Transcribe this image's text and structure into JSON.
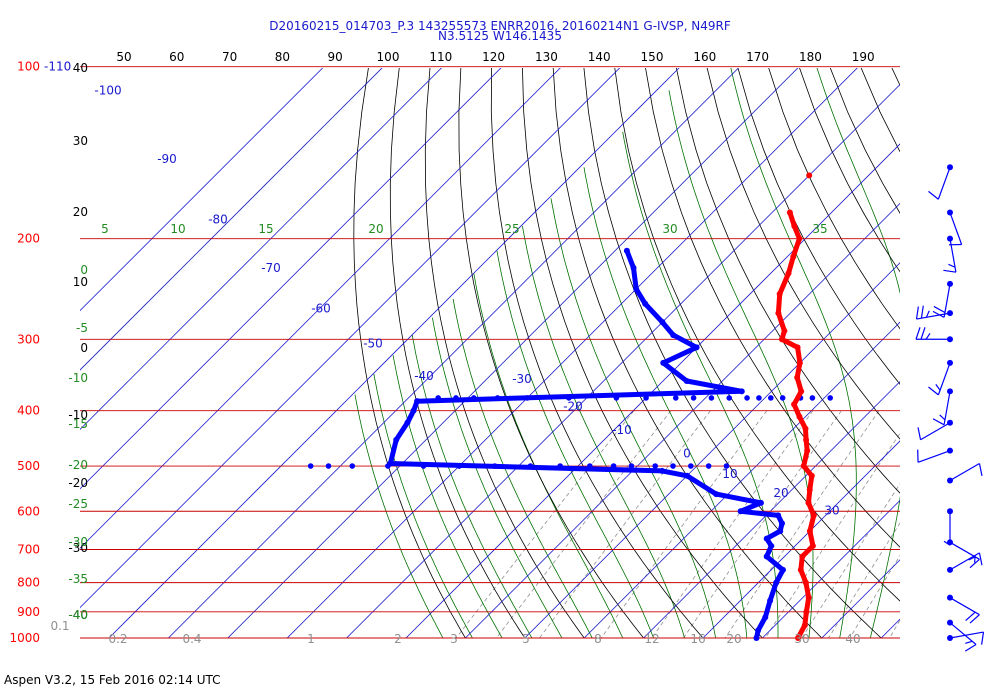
{
  "header": {
    "line1": "D20160215_014703_P.3 143255573 ENRR2016, 20160214N1 G-IVSP, N49RF",
    "line2": "N3.5125 W146.1435"
  },
  "footer": {
    "text": "Aspen V3.2, 15 Feb 2016  02:14 UTC"
  },
  "colors": {
    "temperature": "#ff0000",
    "dewpoint": "#0000ff",
    "isobar": "#cc0000",
    "isotherm": "#1a1acd",
    "dry_adiabat": "#000000",
    "moist_adiabat": "#007000",
    "mixing_ratio": "#909090",
    "wind": "#0000ff"
  },
  "chart_data": {
    "type": "scatter",
    "title": "",
    "xlabel": "",
    "ylabel": "",
    "y_scale": "log-pressure",
    "pressure_levels": [
      100,
      200,
      300,
      400,
      500,
      600,
      700,
      800,
      900,
      1000
    ],
    "pressure_labels": [
      "100",
      "200",
      "300",
      "400",
      "500",
      "600",
      "700",
      "800",
      "900",
      "1000"
    ],
    "pressure_extra_label": "-110",
    "top_temperature_ticks": [
      "50",
      "60",
      "70",
      "80",
      "90",
      "100",
      "110",
      "120",
      "130",
      "140",
      "150",
      "160",
      "170",
      "180",
      "190"
    ],
    "isotherm_labels": [
      "-100",
      "-90",
      "-80",
      "-70",
      "-60",
      "-50",
      "-40",
      "-30",
      "-20",
      "-10",
      "0",
      "10",
      "20",
      "30"
    ],
    "dry_adiabat_labels": [
      "40",
      "30",
      "20",
      "10",
      "0",
      "-10",
      "-20",
      "-30",
      "-40"
    ],
    "moist_adiabat_left_labels": [
      "5",
      "0",
      "-5",
      "-10",
      "-15",
      "-20",
      "-25",
      "-30",
      "-35",
      "-40"
    ],
    "moist_adiabat_top_labels": [
      "5",
      "10",
      "15",
      "20",
      "25",
      "30",
      "35"
    ],
    "mixing_ratio_labels": [
      "0.1",
      "0.2",
      "0.4",
      "1",
      "2",
      "3",
      "5",
      "8",
      "12",
      "16",
      "20",
      "30",
      "40"
    ],
    "temperature_profile": {
      "name": "Temperature",
      "points": [
        [
          180,
          -57
        ],
        [
          190,
          -54
        ],
        [
          200,
          -51
        ],
        [
          215,
          -49
        ],
        [
          230,
          -47
        ],
        [
          250,
          -45
        ],
        [
          270,
          -42
        ],
        [
          290,
          -38
        ],
        [
          300,
          -37
        ],
        [
          310,
          -33
        ],
        [
          330,
          -30
        ],
        [
          350,
          -28
        ],
        [
          370,
          -25
        ],
        [
          390,
          -24
        ],
        [
          410,
          -21
        ],
        [
          430,
          -18
        ],
        [
          450,
          -16
        ],
        [
          470,
          -14
        ],
        [
          500,
          -12
        ],
        [
          520,
          -9
        ],
        [
          550,
          -7
        ],
        [
          580,
          -5
        ],
        [
          610,
          -2
        ],
        [
          650,
          0
        ],
        [
          690,
          3
        ],
        [
          720,
          3
        ],
        [
          760,
          5
        ],
        [
          800,
          8
        ],
        [
          850,
          11
        ],
        [
          900,
          13
        ],
        [
          950,
          15
        ],
        [
          1000,
          16
        ]
      ],
      "isolated_point": [
        155,
        -60
      ]
    },
    "dewpoint_profile": {
      "name": "Dewpoint",
      "points": [
        [
          210,
          -78
        ],
        [
          225,
          -74
        ],
        [
          245,
          -70
        ],
        [
          260,
          -66
        ],
        [
          280,
          -60
        ],
        [
          295,
          -56
        ],
        [
          310,
          -50
        ],
        [
          330,
          -53
        ],
        [
          355,
          -46
        ],
        [
          370,
          -35
        ],
        [
          385,
          -88
        ],
        [
          400,
          -87
        ],
        [
          420,
          -86
        ],
        [
          450,
          -85
        ],
        [
          495,
          -82
        ],
        [
          510,
          -35
        ],
        [
          520,
          -30
        ],
        [
          560,
          -22
        ],
        [
          580,
          -13
        ],
        [
          600,
          -15
        ],
        [
          610,
          -8
        ],
        [
          630,
          -6
        ],
        [
          650,
          -5
        ],
        [
          670,
          -6
        ],
        [
          690,
          -4
        ],
        [
          720,
          -3
        ],
        [
          760,
          2
        ],
        [
          800,
          3
        ],
        [
          860,
          5
        ],
        [
          920,
          7
        ],
        [
          970,
          8
        ],
        [
          1000,
          9
        ]
      ],
      "scatter_rows": [
        {
          "p": 380,
          "t": [
            -85,
            -82,
            -79,
            -75,
            -70,
            -63,
            -55,
            -50,
            -45,
            -42,
            -39,
            -36,
            -33,
            -31,
            -29,
            -27,
            -24,
            -22,
            -19
          ]
        },
        {
          "p": 500,
          "t": [
            -95,
            -92,
            -88,
            -82,
            -76,
            -70,
            -64,
            -58,
            -53,
            -48,
            -44,
            -41,
            -37,
            -34,
            -31,
            -28,
            -25
          ]
        }
      ]
    },
    "wind_barbs": [
      {
        "p": 150,
        "dir": 20,
        "kt": 10
      },
      {
        "p": 180,
        "dir": 340,
        "kt": 10
      },
      {
        "p": 200,
        "dir": 350,
        "kt": 15
      },
      {
        "p": 240,
        "dir": 10,
        "kt": 20
      },
      {
        "p": 270,
        "dir": 80,
        "kt": 25
      },
      {
        "p": 300,
        "dir": 90,
        "kt": 25
      },
      {
        "p": 330,
        "dir": 20,
        "kt": 15
      },
      {
        "p": 370,
        "dir": 10,
        "kt": 15
      },
      {
        "p": 420,
        "dir": 60,
        "kt": 10
      },
      {
        "p": 470,
        "dir": 70,
        "kt": 10
      },
      {
        "p": 530,
        "dir": 240,
        "kt": 10
      },
      {
        "p": 600,
        "dir": 0,
        "kt": 5
      },
      {
        "p": 680,
        "dir": 300,
        "kt": 15
      },
      {
        "p": 760,
        "dir": 240,
        "kt": 15
      },
      {
        "p": 850,
        "dir": 300,
        "kt": 20
      },
      {
        "p": 940,
        "dir": 310,
        "kt": 15
      },
      {
        "p": 1000,
        "dir": 260,
        "kt": 10
      }
    ]
  }
}
